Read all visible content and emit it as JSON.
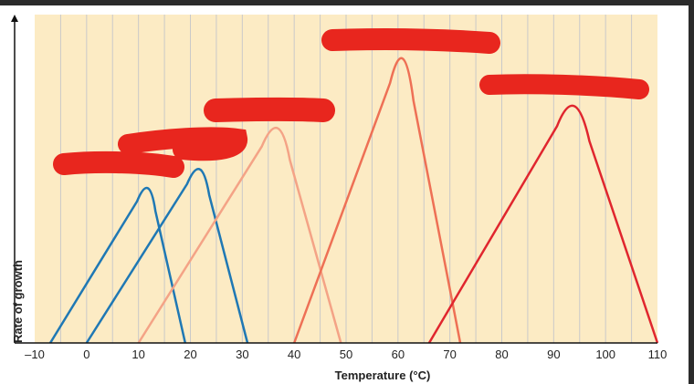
{
  "chart_data": {
    "type": "line",
    "xlabel": "Temperature (°C)",
    "ylabel": "Rate of growth",
    "xlim": [
      -10,
      110
    ],
    "x_ticks": [
      "–10",
      "0",
      "10",
      "20",
      "30",
      "40",
      "50",
      "60",
      "70",
      "80",
      "90",
      "100",
      "110"
    ],
    "grid": "vertical lines every 5 °C",
    "background_color": "#fcebc4",
    "series": [
      {
        "color": "#1f78b4",
        "x": [
          -7,
          12,
          19
        ],
        "y": [
          0,
          0.49,
          0
        ]
      },
      {
        "color": "#1f78b4",
        "x": [
          0,
          22,
          31
        ],
        "y": [
          0,
          0.55,
          0
        ]
      },
      {
        "color": "#f4a386",
        "x": [
          10,
          37,
          49
        ],
        "y": [
          0,
          0.68,
          0
        ]
      },
      {
        "color": "#ee7055",
        "x": [
          40,
          61,
          72
        ],
        "y": [
          0,
          0.9,
          0
        ]
      },
      {
        "color": "#e0262e",
        "x": [
          66,
          94,
          110
        ],
        "y": [
          0,
          0.75,
          0
        ]
      }
    ],
    "redaction_color": "#e8261e"
  }
}
